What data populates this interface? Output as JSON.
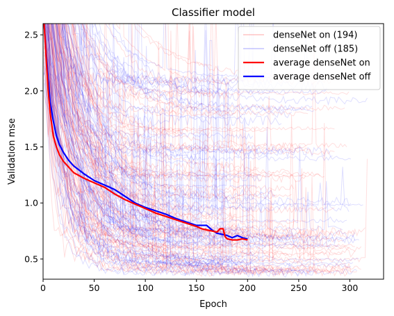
{
  "chart_data": {
    "type": "line",
    "title": "Classifier model",
    "xlabel": "Epoch",
    "ylabel": "Validation mse",
    "xlim": [
      0,
      333
    ],
    "ylim": [
      0.32,
      2.6
    ],
    "x_ticks": [
      0,
      50,
      100,
      150,
      200,
      250,
      300
    ],
    "y_ticks": [
      0.5,
      1.0,
      1.5,
      2.0,
      2.5
    ],
    "x_tick_labels": [
      "0",
      "50",
      "100",
      "150",
      "200",
      "250",
      "300"
    ],
    "y_tick_labels": [
      "0.5",
      "1.0",
      "1.5",
      "2.0",
      "2.5"
    ],
    "grid": false,
    "legend_position": "top-right",
    "colors": {
      "on": "#ff0000",
      "off": "#0000ff"
    },
    "legend": [
      {
        "label": "denseNet on (194)",
        "style": "thin",
        "color": "#ff0000"
      },
      {
        "label": "denseNet off (185)",
        "style": "thin",
        "color": "#0000ff"
      },
      {
        "label": "average denseNet on",
        "style": "thick",
        "color": "#ff0000"
      },
      {
        "label": "average denseNet off",
        "style": "thick",
        "color": "#0000ff"
      }
    ],
    "run_counts": {
      "on": 194,
      "off": 185
    },
    "series": [
      {
        "name": "average denseNet on",
        "color": "#ff0000",
        "x": [
          1,
          3,
          5,
          7,
          10,
          13,
          16,
          20,
          25,
          30,
          40,
          50,
          60,
          70,
          80,
          90,
          100,
          110,
          120,
          130,
          140,
          150,
          155,
          160,
          165,
          170,
          173,
          176,
          178,
          180,
          185,
          190,
          195,
          200
        ],
        "y": [
          2.6,
          2.3,
          2.0,
          1.8,
          1.6,
          1.5,
          1.43,
          1.37,
          1.32,
          1.27,
          1.22,
          1.18,
          1.14,
          1.08,
          1.03,
          0.99,
          0.95,
          0.91,
          0.88,
          0.85,
          0.82,
          0.79,
          0.77,
          0.76,
          0.75,
          0.74,
          0.77,
          0.77,
          0.7,
          0.68,
          0.67,
          0.67,
          0.68,
          0.67
        ]
      },
      {
        "name": "average denseNet off",
        "color": "#0000ff",
        "x": [
          1,
          3,
          5,
          7,
          10,
          13,
          16,
          20,
          25,
          30,
          40,
          50,
          60,
          70,
          80,
          90,
          100,
          110,
          120,
          130,
          140,
          150,
          160,
          165,
          170,
          175,
          180,
          185,
          190,
          195,
          200
        ],
        "y": [
          2.6,
          2.35,
          2.1,
          1.9,
          1.73,
          1.6,
          1.52,
          1.45,
          1.38,
          1.33,
          1.26,
          1.2,
          1.16,
          1.12,
          1.06,
          1.0,
          0.96,
          0.93,
          0.9,
          0.86,
          0.83,
          0.8,
          0.8,
          0.76,
          0.73,
          0.72,
          0.71,
          0.69,
          0.71,
          0.69,
          0.68
        ]
      }
    ]
  }
}
